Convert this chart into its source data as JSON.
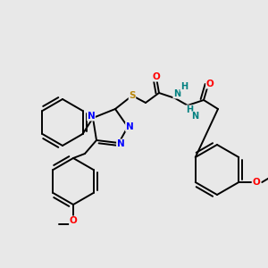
{
  "background_color": "#e8e8e8",
  "atom_colors": {
    "C": "black",
    "N": "#0000ff",
    "O": "#ff0000",
    "S": "#b8860b",
    "H": "#008080"
  },
  "bond_color": "black",
  "bond_lw": 1.4,
  "font_size": 7.5
}
